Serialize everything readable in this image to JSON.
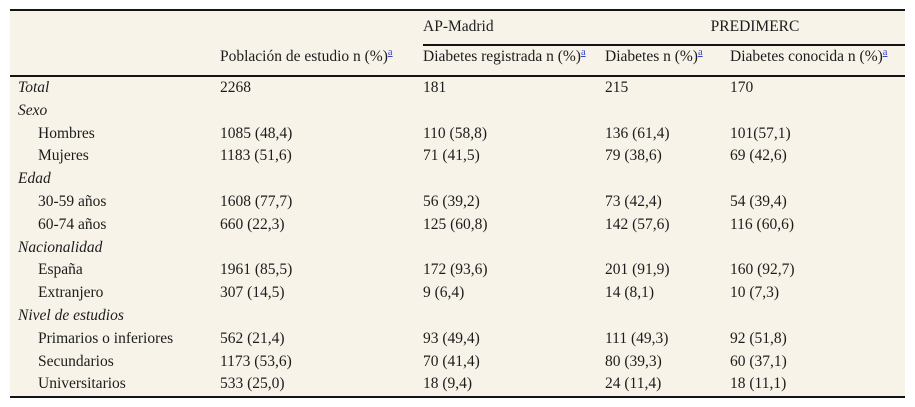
{
  "colors": {
    "table_background": "#f7f3e8",
    "text": "#1c1c1c",
    "rule": "#141414",
    "footnote_link": "#3a41c8"
  },
  "header": {
    "groups": [
      {
        "label": "AP-Madrid"
      },
      {
        "label": "PREDIMERC"
      }
    ],
    "columns": [
      {
        "label": "Población de estudio n (%)",
        "sup": "a"
      },
      {
        "label": "Diabetes registrada n (%)",
        "sup": "a"
      },
      {
        "label": "Diabetes n (%)",
        "sup": "a"
      },
      {
        "label": "Diabetes conocida n (%)",
        "sup": "a"
      }
    ]
  },
  "rows": [
    {
      "label": "Total",
      "italic": true,
      "indent": false,
      "values": [
        "2268",
        "181",
        "215",
        "170"
      ]
    },
    {
      "label": "Sexo",
      "italic": true,
      "indent": false,
      "values": [
        "",
        "",
        "",
        ""
      ]
    },
    {
      "label": "Hombres",
      "italic": false,
      "indent": true,
      "values": [
        "1085 (48,4)",
        "110 (58,8)",
        "136 (61,4)",
        "101(57,1)"
      ]
    },
    {
      "label": "Mujeres",
      "italic": false,
      "indent": true,
      "values": [
        "1183 (51,6)",
        "71 (41,5)",
        "79 (38,6)",
        "69 (42,6)"
      ]
    },
    {
      "label": "Edad",
      "italic": true,
      "indent": false,
      "values": [
        "",
        "",
        "",
        ""
      ]
    },
    {
      "label": "30-59 años",
      "italic": false,
      "indent": true,
      "values": [
        "1608 (77,7)",
        "56 (39,2)",
        "73 (42,4)",
        "54 (39,4)"
      ]
    },
    {
      "label": "60-74 años",
      "italic": false,
      "indent": true,
      "values": [
        "660 (22,3)",
        "125 (60,8)",
        "142 (57,6)",
        "116 (60,6)"
      ]
    },
    {
      "label": "Nacionalidad",
      "italic": true,
      "indent": false,
      "values": [
        "",
        "",
        "",
        ""
      ]
    },
    {
      "label": "España",
      "italic": false,
      "indent": true,
      "values": [
        "1961 (85,5)",
        "172 (93,6)",
        "201 (91,9)",
        "160 (92,7)"
      ]
    },
    {
      "label": "Extranjero",
      "italic": false,
      "indent": true,
      "values": [
        "307 (14,5)",
        "9 (6,4)",
        "14 (8,1)",
        "10 (7,3)"
      ]
    },
    {
      "label": "Nivel de estudios",
      "italic": true,
      "indent": false,
      "values": [
        "",
        "",
        "",
        ""
      ]
    },
    {
      "label": "Primarios o inferiores",
      "italic": false,
      "indent": true,
      "values": [
        "562 (21,4)",
        "93 (49,4)",
        "111 (49,3)",
        "92 (51,8)"
      ]
    },
    {
      "label": "Secundarios",
      "italic": false,
      "indent": true,
      "values": [
        "1173 (53,6)",
        "70 (41,4)",
        "80 (39,3)",
        "60 (37,1)"
      ]
    },
    {
      "label": "Universitarios",
      "italic": false,
      "indent": true,
      "values": [
        "533 (25,0)",
        "18 (9,4)",
        "24 (11,4)",
        "18 (11,1)"
      ]
    }
  ]
}
